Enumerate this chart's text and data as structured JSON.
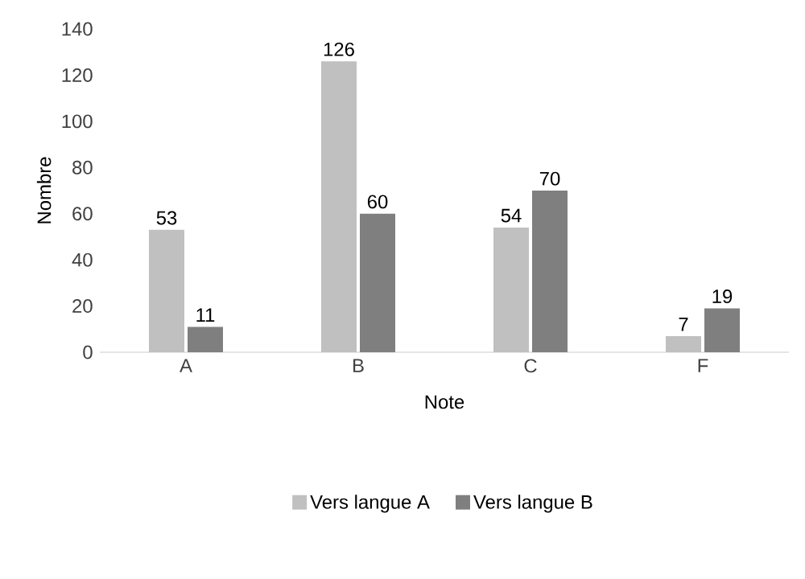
{
  "chart_data": {
    "type": "bar",
    "xlabel": "Note",
    "ylabel": "Nombre",
    "categories": [
      "A",
      "B",
      "C",
      "F"
    ],
    "series": [
      {
        "name": "Vers langue A",
        "color": "#c0c0c0",
        "values": [
          53,
          126,
          54,
          7
        ]
      },
      {
        "name": "Vers langue B",
        "color": "#7f7f7f",
        "values": [
          11,
          60,
          70,
          19
        ]
      }
    ],
    "ylim": [
      0,
      140
    ],
    "yticks": [
      0,
      20,
      40,
      60,
      80,
      100,
      120,
      140
    ],
    "data_labels": true,
    "legend": "bottom"
  }
}
